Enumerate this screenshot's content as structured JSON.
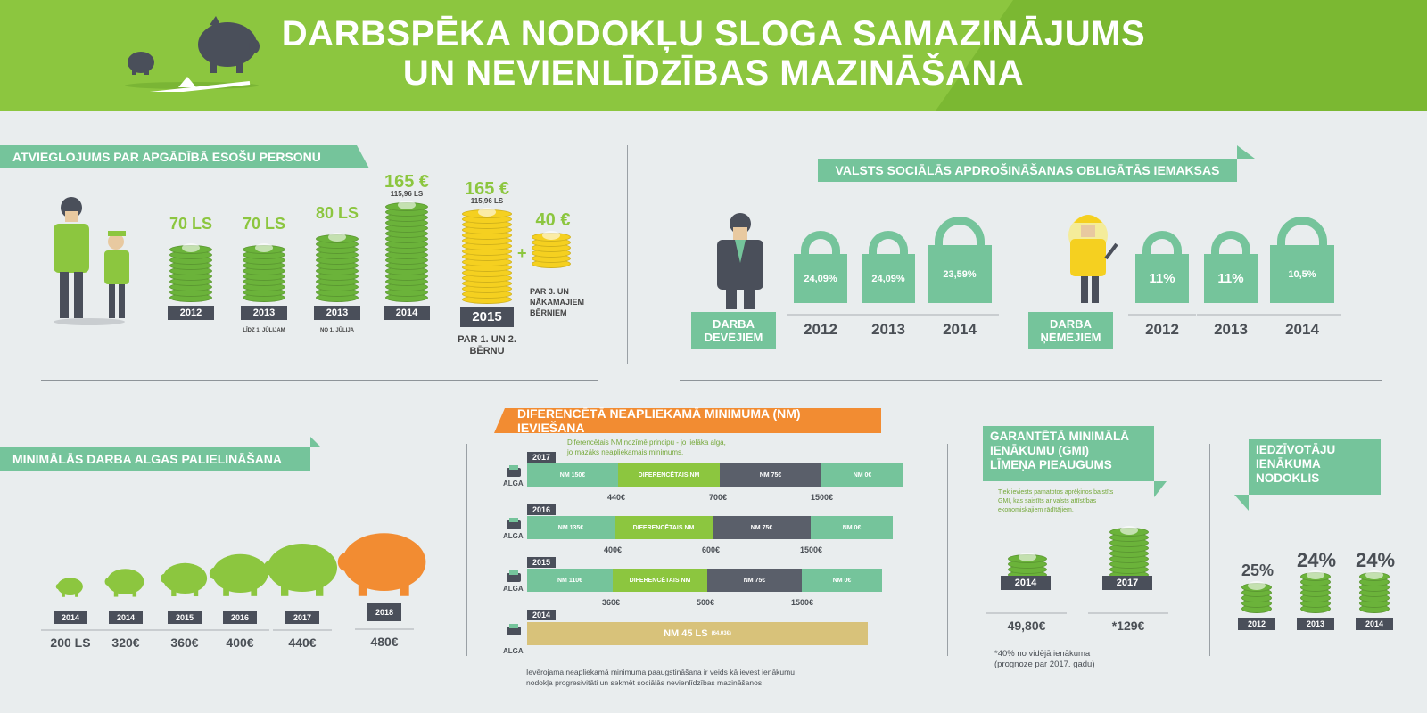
{
  "header": {
    "title_line1": "DARBSPĒKA NODOKĻU SLOGA SAMAZINĀJUMS",
    "title_line2": "UN NEVIENLĪDZĪBAS MAZINĀŠANA"
  },
  "dependents": {
    "heading": "ATVIEGLOJUMS PAR APGĀDĪBĀ ESOŠU PERSONU",
    "items": [
      {
        "value": "70 LS",
        "sub": "",
        "year": "2012",
        "note": ""
      },
      {
        "value": "70 LS",
        "sub": "",
        "year": "2013",
        "note": "LĪDZ 1. JŪLIJAM"
      },
      {
        "value": "80 LS",
        "sub": "",
        "year": "2013",
        "note": "NO 1. JŪLIJA"
      },
      {
        "value": "165 €",
        "sub": "115,96 LS",
        "year": "2014",
        "note": ""
      },
      {
        "value": "165 €",
        "sub": "115,96 LS",
        "year": "2015",
        "note": "PAR 1. UN 2. BĒRNU"
      }
    ],
    "extra_value": "40 €",
    "extra_note": "PAR 3. UN NĀKAMAJIEM BĒRNIEM",
    "plus": "+"
  },
  "social": {
    "heading": "VALSTS SOCIĀLĀS APDROŠINĀŠANAS OBLIGĀTĀS IEMAKSAS",
    "employers_label": "DARBA DEVĒJIEM",
    "employees_label": "DARBA ŅĒMĒJIEM",
    "employers": [
      {
        "rate": "24,09%",
        "year": "2012"
      },
      {
        "rate": "24,09%",
        "year": "2013"
      },
      {
        "rate": "23,59%",
        "year": "2014"
      }
    ],
    "employees": [
      {
        "rate": "11%",
        "year": "2012"
      },
      {
        "rate": "11%",
        "year": "2013"
      },
      {
        "rate": "10,5%",
        "year": "2014"
      }
    ]
  },
  "min_wage": {
    "heading": "MINIMĀLĀS DARBA ALGAS PALIELINĀŠANA",
    "items": [
      {
        "year": "2014",
        "value": "200 LS"
      },
      {
        "year": "2014",
        "value": "320€"
      },
      {
        "year": "2015",
        "value": "360€"
      },
      {
        "year": "2016",
        "value": "400€"
      },
      {
        "year": "2017",
        "value": "440€"
      },
      {
        "year": "2018",
        "value": "480€"
      }
    ]
  },
  "nm": {
    "heading": "DIFERENCĒTĀ NEAPLIEKAMĀ MINIMUMA (NM) IEVIEŠANA",
    "note_line1": "Diferencētais NM nozīmē principu - jo lielāka alga,",
    "note_line2": "jo mazāks neapliekamais minimums.",
    "alga_label": "ALGA",
    "rows": [
      {
        "year": "2017",
        "segs": [
          "NM 150€",
          "DIFERENCĒTAIS NM",
          "NM 75€",
          "NM 0€"
        ],
        "ticks": [
          "440€",
          "700€",
          "1500€"
        ]
      },
      {
        "year": "2016",
        "segs": [
          "NM 135€",
          "DIFERENCĒTAIS NM",
          "NM 75€",
          "NM 0€"
        ],
        "ticks": [
          "400€",
          "600€",
          "1500€"
        ]
      },
      {
        "year": "2015",
        "segs": [
          "NM 110€",
          "DIFERENCĒTAIS NM",
          "NM 75€",
          "NM 0€"
        ],
        "ticks": [
          "360€",
          "500€",
          "1500€"
        ]
      }
    ],
    "row2014_year": "2014",
    "row2014_main": "NM 45 LS",
    "row2014_sub": "(64,03€)",
    "footer_line1": "Ievērojama neapliekamā minimuma paaugstināšana ir veids kā ievest ienākumu",
    "footer_line2": "nodokļa progresivitāti un sekmēt sociālās nevienlīdzības mazināšanos"
  },
  "gmi": {
    "heading_line1": "GARANTĒTĀ MINIMĀLĀ",
    "heading_line2": "IENĀKUMU (GMI)",
    "heading_line3": "LĪMEŅA PIEAUGUMS",
    "note_line1": "Tiek ieviests pamatotos aprēķinos balstīts",
    "note_line2": "GMI, kas saistīts ar valsts attīstības",
    "note_line3": "ekonomiskajiem rādītājiem.",
    "items": [
      {
        "year": "2014",
        "value": "49,80€"
      },
      {
        "year": "2017",
        "value": "*129€"
      }
    ],
    "footnote_line1": "*40% no vidējā ienākuma",
    "footnote_line2": "(prognoze par 2017. gadu)"
  },
  "income_tax": {
    "heading_line1": "IEDZĪVOTĀJU",
    "heading_line2": "IENĀKUMA",
    "heading_line3": "NODOKLIS",
    "items": [
      {
        "rate": "25%",
        "year": "2012"
      },
      {
        "rate": "24%",
        "year": "2013"
      },
      {
        "rate": "24%",
        "year": "2014"
      }
    ]
  },
  "colors": {
    "green": "#8cc63f",
    "teal": "#75c49b",
    "orange": "#f28c32",
    "dark": "#4a4f5a",
    "gold": "#f5d020",
    "sand": "#d8c27a"
  }
}
